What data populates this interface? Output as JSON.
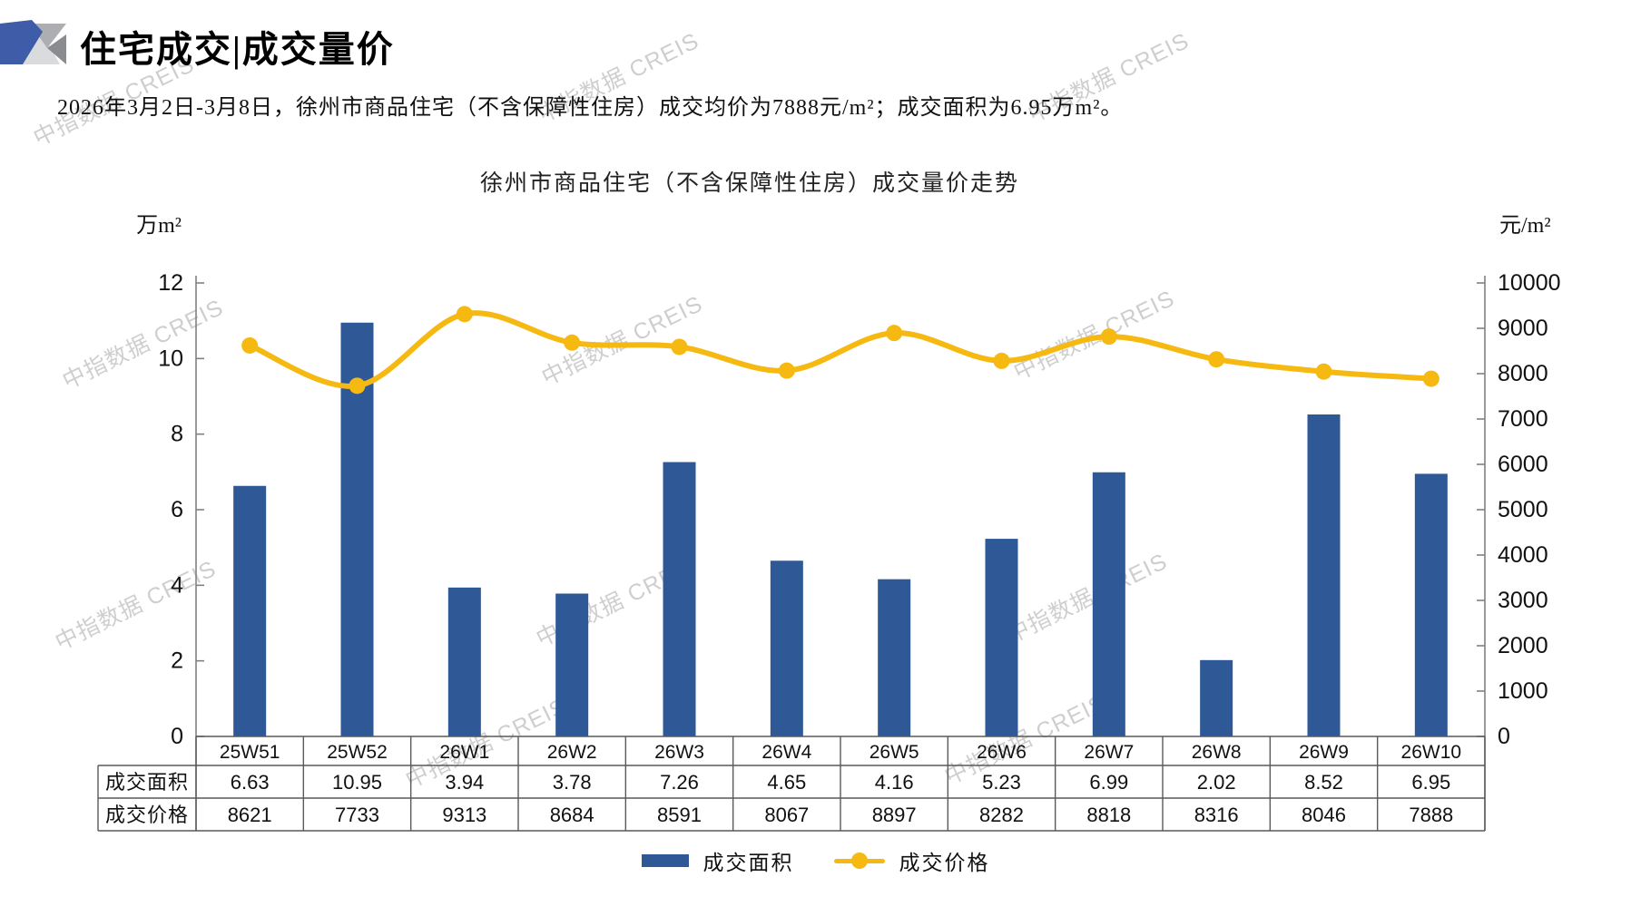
{
  "header": {
    "title": "住宅成交|成交量价",
    "subtitle": "2026年3月2日-3月8日，徐州市商品住宅（不含保障性住房）成交均价为7888元/m²；成交面积为6.95万m²。",
    "logo_colors": {
      "blue": "#3E5CA7",
      "light_gray": "#DADBDD",
      "mid_gray": "#ACAEB2",
      "dark_gray": "#8A8C90"
    }
  },
  "watermark": {
    "text": "中指数据 CREIS"
  },
  "chart_data": {
    "type": "bar+line combo",
    "title": "徐州市商品住宅（不含保障性住房）成交量价走势",
    "categories": [
      "25W51",
      "25W52",
      "26W1",
      "26W2",
      "26W3",
      "26W4",
      "26W5",
      "26W6",
      "26W7",
      "26W8",
      "26W9",
      "26W10"
    ],
    "series": [
      {
        "name": "成交面积",
        "type": "bar",
        "axis": "left",
        "color": "#2F5897",
        "values": [
          6.63,
          10.95,
          3.94,
          3.78,
          7.26,
          4.65,
          4.16,
          5.23,
          6.99,
          2.02,
          8.52,
          6.95
        ]
      },
      {
        "name": "成交价格",
        "type": "line",
        "axis": "right",
        "color": "#F6B912",
        "values": [
          8621,
          7733,
          9313,
          8684,
          8591,
          8067,
          8897,
          8282,
          8818,
          8316,
          8046,
          7888
        ]
      }
    ],
    "left_axis": {
      "label": "万m²",
      "min": 0,
      "max": 12,
      "step": 2,
      "ticks": [
        0,
        2,
        4,
        6,
        8,
        10,
        12
      ]
    },
    "right_axis": {
      "label": "元/m²",
      "min": 0,
      "max": 10000,
      "step": 1000,
      "ticks": [
        0,
        1000,
        2000,
        3000,
        4000,
        5000,
        6000,
        7000,
        8000,
        9000,
        10000
      ]
    },
    "grid": false,
    "legend_position": "bottom",
    "table_row_labels": [
      "成交面积",
      "成交价格"
    ],
    "colors": {
      "axis_line": "#808080",
      "table_border": "#595959",
      "text": "#111111"
    }
  }
}
